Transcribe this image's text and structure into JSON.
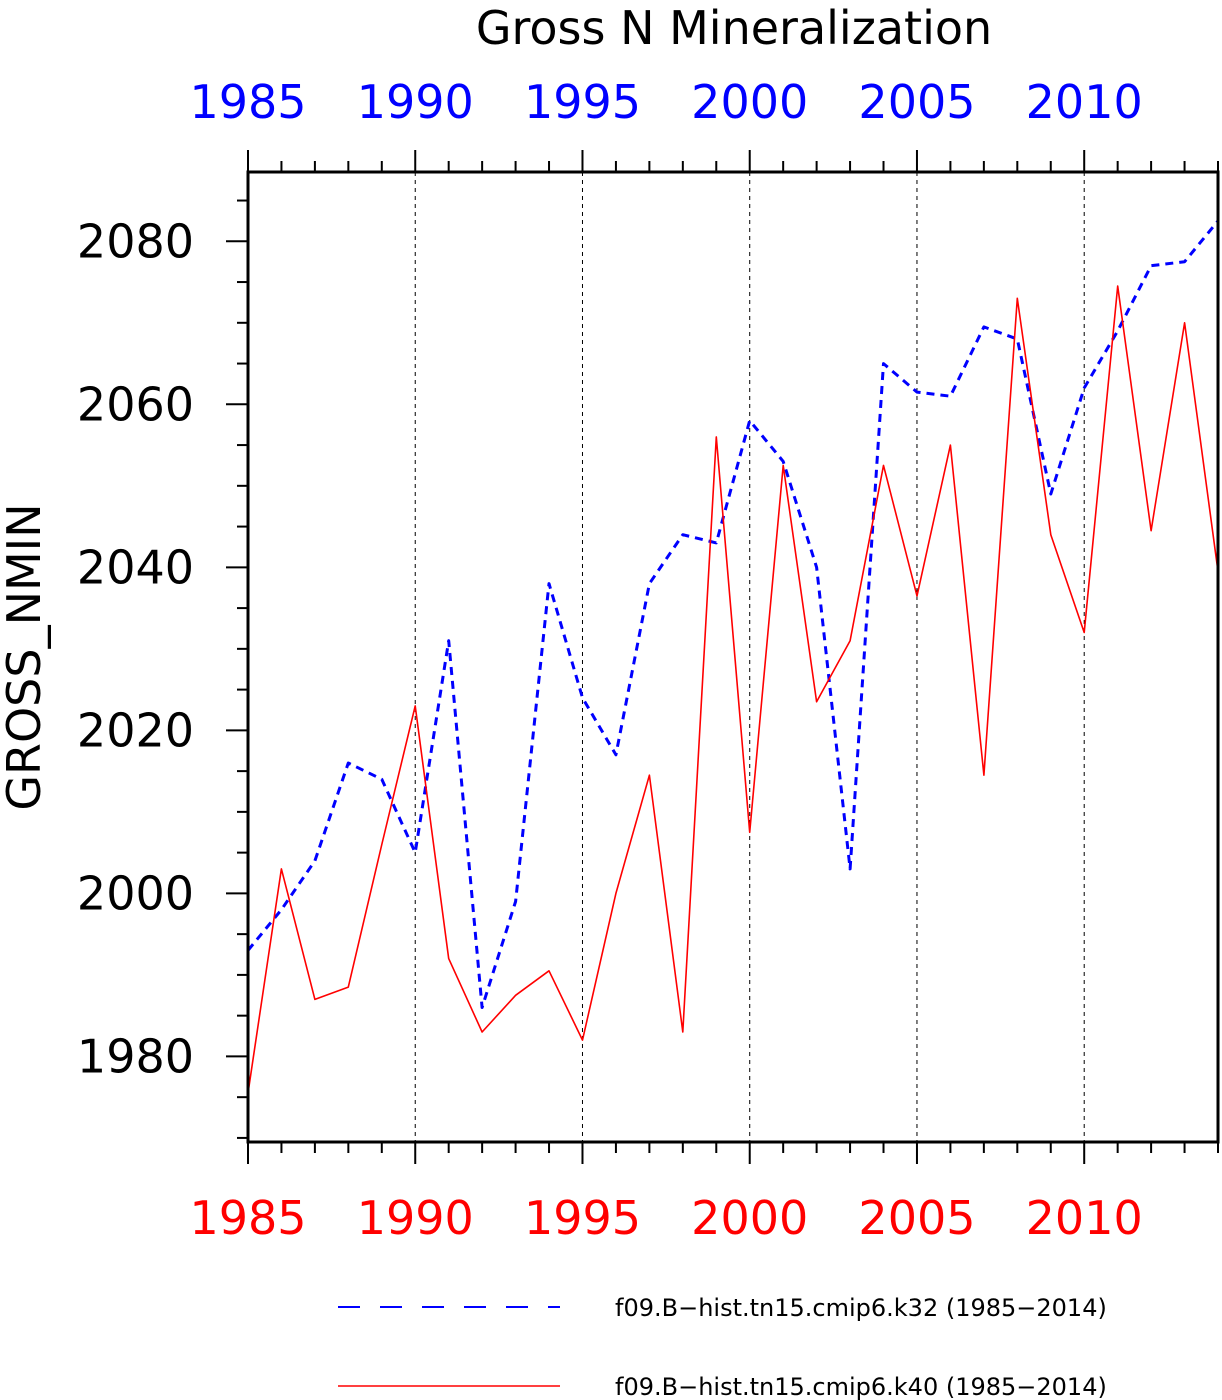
{
  "chart_data": {
    "type": "line",
    "title": "Gross N Mineralization",
    "ylabel": "GROSS_NMIN",
    "xlabel": "",
    "xlim": [
      1985,
      2014
    ],
    "ylim": [
      1969.5,
      2088.5
    ],
    "x_ticks": [
      "1985",
      "1990",
      "1995",
      "2000",
      "2005",
      "2010"
    ],
    "y_ticks": [
      "1980",
      "2000",
      "2020",
      "2040",
      "2060",
      "2080"
    ],
    "grid": "vertical dashed at major x ticks",
    "x": [
      1985,
      1986,
      1987,
      1988,
      1989,
      1990,
      1991,
      1992,
      1993,
      1994,
      1995,
      1996,
      1997,
      1998,
      1999,
      2000,
      2001,
      2002,
      2003,
      2004,
      2005,
      2006,
      2007,
      2008,
      2009,
      2010,
      2011,
      2012,
      2013,
      2014
    ],
    "series": [
      {
        "name": "f09.B−hist.tn15.cmip6.k32 (1985−2014)",
        "color": "#0000ff",
        "style": "dashed",
        "axis": "top",
        "values": [
          1993,
          1998,
          2004,
          2016,
          2014,
          2005,
          2031,
          1986,
          1999,
          2038,
          2024,
          2017,
          2038,
          2044,
          2043,
          2058,
          2053,
          2040,
          2003,
          2065,
          2061.5,
          2061,
          2069.5,
          2068,
          2049,
          2062,
          2069,
          2077,
          2077.5,
          2082.5
        ]
      },
      {
        "name": "f09.B−hist.tn15.cmip6.k40 (1985−2014)",
        "color": "#ff0000",
        "style": "solid",
        "axis": "bottom",
        "values": [
          1975.5,
          2003,
          1987,
          1988.5,
          2006,
          2023,
          1992,
          1983,
          1987.5,
          1990.5,
          1982,
          2000,
          2014.5,
          1983,
          2056,
          2007.5,
          2052.5,
          2023.5,
          2031,
          2052.5,
          2036.5,
          2055,
          2014.5,
          2073,
          2044,
          2032,
          2074.5,
          2044.5,
          2070,
          2039.5
        ]
      }
    ]
  }
}
